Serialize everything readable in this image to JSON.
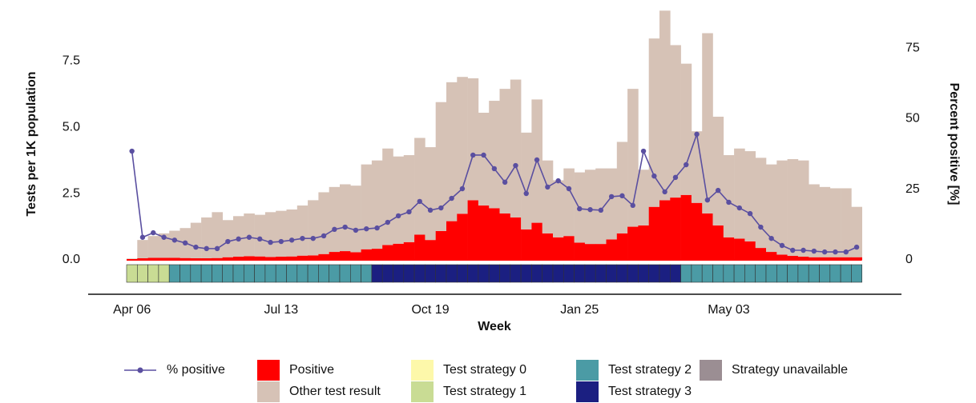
{
  "chart_data": {
    "type": "stacked-bar-line",
    "xlabel": "Week",
    "ylabel": "Tests per 1K population",
    "y2label": "Percent positive [%]",
    "categories": [
      "Apr 06",
      null,
      null,
      null,
      null,
      null,
      null,
      null,
      null,
      null,
      null,
      null,
      null,
      null,
      "Jul 13",
      null,
      null,
      null,
      null,
      null,
      null,
      null,
      null,
      null,
      null,
      null,
      null,
      null,
      "Oct 19",
      null,
      null,
      null,
      null,
      null,
      null,
      null,
      null,
      null,
      null,
      null,
      null,
      null,
      "Jan 25",
      null,
      null,
      null,
      null,
      null,
      null,
      null,
      null,
      null,
      null,
      null,
      null,
      null,
      "May 03",
      null,
      null,
      null,
      null,
      null,
      null,
      null,
      null,
      null,
      null,
      null,
      null
    ],
    "ylim": [
      0,
      9.5
    ],
    "yticks": [
      {
        "value": 0,
        "label": "0.0"
      },
      2.5,
      {
        "value": 5,
        "label": "5.0"
      },
      7.5
    ],
    "y2lim": [
      0,
      89.2
    ],
    "y2ticks": [
      0,
      25,
      50,
      75
    ],
    "series": [
      {
        "name": "% positive",
        "color": "#5a4fa0",
        "axis": "y2",
        "kind": "line",
        "values": [
          38.5,
          8,
          9.6,
          8,
          7,
          6,
          4.5,
          4,
          4,
          6.5,
          7.4,
          8,
          7.4,
          6.2,
          6.5,
          7,
          7.6,
          7.6,
          8.5,
          10.8,
          11.6,
          10.5,
          11,
          11.3,
          13.3,
          15.6,
          17,
          20.7,
          17.6,
          18.4,
          21.8,
          25.2,
          37.1,
          37.1,
          32.3,
          27.5,
          33.4,
          23.5,
          35.4,
          25.8,
          28,
          25.2,
          18.1,
          17.8,
          17.6,
          22.4,
          22.7,
          19.3,
          38.5,
          29.7,
          24.1,
          29.2,
          33.7,
          44.5,
          21.2,
          24.6,
          20.4,
          18.4,
          16.4,
          11.6,
          7.6,
          5.1,
          3.4,
          3.4,
          3.1,
          2.8,
          2.8,
          2.8,
          4.5
        ]
      },
      {
        "name": "Positive",
        "color": "#ff0000",
        "kind": "bar",
        "values": [
          0.02,
          0.06,
          0.08,
          0.08,
          0.08,
          0.07,
          0.06,
          0.06,
          0.07,
          0.1,
          0.12,
          0.14,
          0.13,
          0.11,
          0.12,
          0.13,
          0.16,
          0.17,
          0.22,
          0.3,
          0.33,
          0.29,
          0.4,
          0.42,
          0.56,
          0.61,
          0.67,
          0.95,
          0.75,
          1.09,
          1.46,
          1.74,
          2.25,
          2.05,
          1.95,
          1.75,
          1.6,
          1.15,
          1.4,
          1.0,
          0.85,
          0.9,
          0.65,
          0.6,
          0.6,
          0.77,
          1.0,
          1.25,
          1.3,
          2.0,
          2.25,
          2.35,
          2.45,
          2.15,
          1.75,
          1.3,
          0.85,
          0.8,
          0.7,
          0.45,
          0.3,
          0.2,
          0.15,
          0.12,
          0.1,
          0.1,
          0.1,
          0.1,
          0.1
        ]
      },
      {
        "name": "Other test result",
        "color": "#d6c2b6",
        "kind": "bar",
        "values": [
          0.03,
          0.69,
          0.82,
          0.92,
          1.02,
          1.13,
          1.34,
          1.54,
          1.73,
          1.4,
          1.53,
          1.61,
          1.57,
          1.69,
          1.73,
          1.77,
          1.89,
          2.08,
          2.33,
          2.45,
          2.52,
          2.51,
          3.2,
          3.33,
          3.64,
          3.29,
          3.28,
          3.65,
          3.5,
          4.86,
          5.24,
          5.16,
          4.6,
          3.5,
          4.05,
          4.7,
          5.2,
          3.65,
          4.65,
          2.75,
          2.15,
          2.55,
          2.65,
          2.8,
          2.85,
          2.68,
          3.45,
          5.2,
          2.1,
          6.35,
          7.15,
          5.75,
          4.95,
          2.7,
          6.8,
          4.1,
          3.1,
          3.4,
          3.4,
          3.4,
          3.3,
          3.55,
          3.65,
          3.63,
          2.75,
          2.65,
          2.6,
          2.6,
          1.9
        ]
      }
    ],
    "strategies": [
      {
        "name": "Test strategy 0",
        "color": "#fdf8aa"
      },
      {
        "name": "Test strategy 1",
        "color": "#c9dc94"
      },
      {
        "name": "Test strategy 2",
        "color": "#4b9ba5"
      },
      {
        "name": "Test strategy 3",
        "color": "#1b1f81"
      },
      {
        "name": "Strategy unavailable",
        "color": "#9b8e93"
      }
    ],
    "strategy_by_week": [
      1,
      1,
      1,
      1,
      2,
      2,
      2,
      2,
      2,
      2,
      2,
      2,
      2,
      2,
      2,
      2,
      2,
      2,
      2,
      2,
      2,
      2,
      2,
      3,
      3,
      3,
      3,
      3,
      3,
      3,
      3,
      3,
      3,
      3,
      3,
      3,
      3,
      3,
      3,
      3,
      3,
      3,
      3,
      3,
      3,
      3,
      3,
      3,
      3,
      3,
      3,
      3,
      2,
      2,
      2,
      2,
      2,
      2,
      2,
      2,
      2,
      2,
      2,
      2,
      2,
      2,
      2,
      2,
      2
    ]
  }
}
